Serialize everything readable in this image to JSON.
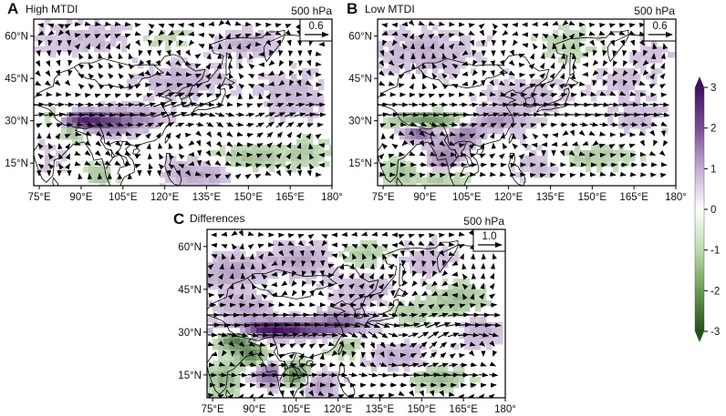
{
  "colorbar": {
    "ticks": [
      "3",
      "2",
      "1",
      "0",
      "-1",
      "-2",
      "-3"
    ],
    "range": [
      -3,
      3
    ]
  },
  "colors": {
    "positive": "#4a1a6b",
    "negative": "#2e5e1e",
    "neutral": "#ffffff"
  },
  "panels": [
    {
      "id": "A",
      "letter": "A",
      "title": "High MTDI",
      "level": "500 hPa",
      "ref_vector": "0.6",
      "x_ticks": [
        "75°E",
        "90°E",
        "105°E",
        "120°E",
        "135°E",
        "150°E",
        "165°E",
        "180°"
      ],
      "y_ticks": [
        "60°N",
        "45°N",
        "30°N",
        "15°N"
      ]
    },
    {
      "id": "B",
      "letter": "B",
      "title": "Low MTDI",
      "level": "500 hPa",
      "ref_vector": "0.6",
      "x_ticks": [
        "75°E",
        "90°E",
        "105°E",
        "120°E",
        "135°E",
        "150°E",
        "165°E",
        "180°"
      ],
      "y_ticks": [
        "60°N",
        "45°N",
        "30°N",
        "15°N"
      ]
    },
    {
      "id": "C",
      "letter": "C",
      "title": "Differences",
      "level": "500 hPa",
      "ref_vector": "1.0",
      "x_ticks": [
        "75°E",
        "90°E",
        "105°E",
        "120°E",
        "135°E",
        "150°E",
        "165°E",
        "180°"
      ],
      "y_ticks": [
        "60°N",
        "45°N",
        "30°N",
        "15°N"
      ]
    }
  ]
}
